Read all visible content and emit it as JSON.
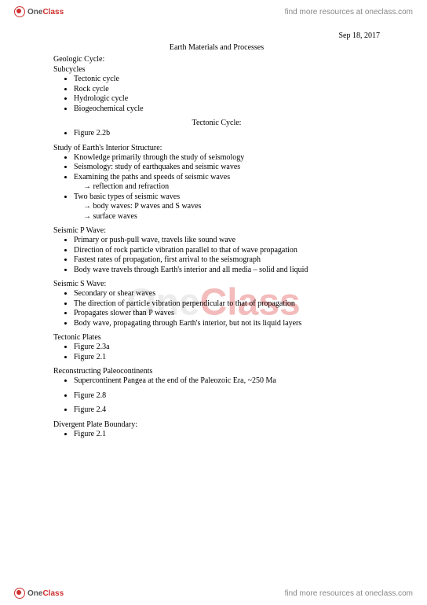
{
  "brand": {
    "one": "One",
    "class": "Class",
    "tagline": "find more resources at oneclass.com"
  },
  "watermark": {
    "one": "One",
    "class": "Class"
  },
  "date": "Sep 18, 2017",
  "title": "Earth Materials and Processes",
  "s1": {
    "h1": "Geologic Cycle:",
    "h2": "Subcycles",
    "items": [
      "Tectonic cycle",
      "Rock cycle",
      "Hydrologic cycle",
      "Biogeochemical cycle"
    ]
  },
  "s2": {
    "title": "Tectonic Cycle:",
    "items": [
      "Figure 2.2b"
    ]
  },
  "s3": {
    "title": "Study of Earth's Interior Structure:",
    "i0": "Knowledge primarily through the study of seismology",
    "i1": "Seismology: study of earthquakes and seismic waves",
    "i2": "Examining the paths and speeds of seismic waves",
    "i2a": "reflection and refraction",
    "i3": "Two basic types of seismic waves",
    "i3a": "body waves: P waves and S waves",
    "i3b": "surface waves"
  },
  "s4": {
    "title": "Seismic P Wave:",
    "items": [
      "Primary or push-pull wave, travels like sound wave",
      "Direction of rock particle vibration parallel to that of wave propagation",
      "Fastest rates of propagation, first arrival to the seismograph",
      "Body wave travels through Earth's interior and all media – solid and liquid"
    ]
  },
  "s5": {
    "title": "Seismic S Wave:",
    "items": [
      "Secondary or shear waves",
      "The direction of particle vibration perpendicular to that of propagation",
      "Propagates slower than P waves",
      "Body wave, propagating through Earth's interior, but not its liquid layers"
    ]
  },
  "s6": {
    "title": "Tectonic Plates",
    "items": [
      "Figure 2.3a",
      "Figure 2.1"
    ]
  },
  "s7": {
    "title": "Reconstructing Paleocontinents",
    "i0": "Supercontinent Pangea at the end of the Paleozoic Era, ~250 Ma",
    "i1": "Figure 2.8",
    "i2": "Figure 2.4"
  },
  "s8": {
    "title": "Divergent Plate Boundary:",
    "items": [
      "Figure 2.1"
    ]
  }
}
